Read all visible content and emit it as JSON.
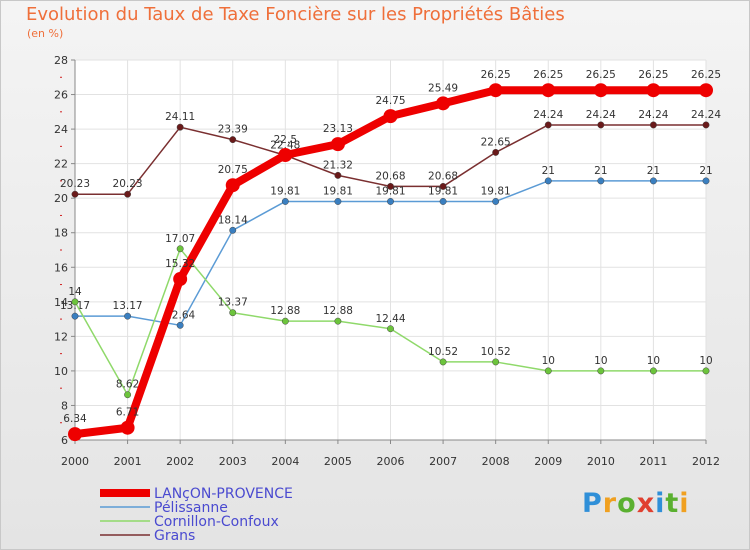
{
  "page": {
    "title": "Evolution du Taux de Taxe Foncière sur les Propriétés Bâties",
    "subtitle": "(en %)",
    "brand": "Proxiti"
  },
  "chart_data": {
    "type": "line",
    "title": "Evolution du Taux de Taxe Foncière sur les Propriétés Bâties",
    "ylabel": "(en %)",
    "xlabel": "",
    "ylim": [
      6,
      28
    ],
    "yticks": [
      6,
      8,
      10,
      12,
      14,
      16,
      18,
      20,
      22,
      24,
      26,
      28
    ],
    "categories": [
      "2000",
      "2001",
      "2002",
      "2003",
      "2004",
      "2005",
      "2006",
      "2007",
      "2008",
      "2009",
      "2010",
      "2011",
      "2012"
    ],
    "grid": true,
    "legend_position": "bottom-left",
    "series": [
      {
        "name": "Grans",
        "color": "#7a2f30",
        "dot": "#6a1a1a",
        "width": 1.5,
        "values": [
          20.23,
          20.23,
          24.11,
          23.39,
          22.48,
          21.32,
          20.68,
          20.68,
          22.65,
          24.24,
          24.24,
          24.24,
          24.24
        ],
        "labels": [
          "20.23",
          "20.23",
          "24.11",
          "23.39",
          "22.48",
          "21.32",
          "20.68",
          "20.68",
          "22.65",
          "24.24",
          "24.24",
          "24.24",
          "24.24"
        ]
      },
      {
        "name": "Pélissanne",
        "color": "#5b9bd5",
        "dot": "#3a7fc0",
        "width": 1.5,
        "values": [
          13.17,
          13.17,
          12.64,
          18.14,
          19.81,
          19.81,
          19.81,
          19.81,
          19.81,
          21,
          21,
          21,
          21
        ],
        "labels": [
          "13.17",
          "13.17",
          "12.64",
          "18.14",
          "19.81",
          "19.81",
          "19.81",
          "19.81",
          "19.81",
          "21",
          "21",
          "21",
          "21"
        ]
      },
      {
        "name": "Cornillon-Confoux",
        "color": "#8fd96a",
        "dot": "#6cc43c",
        "width": 1.5,
        "values": [
          14,
          8.62,
          17.07,
          13.37,
          12.88,
          12.88,
          12.44,
          10.52,
          10.52,
          10,
          10,
          10,
          10
        ],
        "labels": [
          "14",
          "8.62",
          "17.07",
          "13.37",
          "12.88",
          "12.88",
          "12.44",
          "10.52",
          "10.52",
          "10",
          "10",
          "10",
          "10"
        ]
      },
      {
        "name": "LANçON-PROVENCE",
        "color": "#ee0000",
        "dot": "#ee0000",
        "width": 8,
        "values": [
          6.34,
          6.71,
          15.32,
          20.75,
          22.5,
          23.13,
          24.75,
          25.49,
          26.25,
          26.25,
          26.25,
          26.25,
          26.25
        ],
        "labels": [
          "6.34",
          "6.71",
          "15.32",
          "20.75",
          "22.5",
          "23.13",
          "24.75",
          "25.49",
          "26.25",
          "26.25",
          "26.25",
          "26.25",
          "26.25"
        ]
      }
    ],
    "legend": [
      "LANçON-PROVENCE",
      "Pélissanne",
      "Cornillon-Confoux",
      "Grans"
    ]
  }
}
